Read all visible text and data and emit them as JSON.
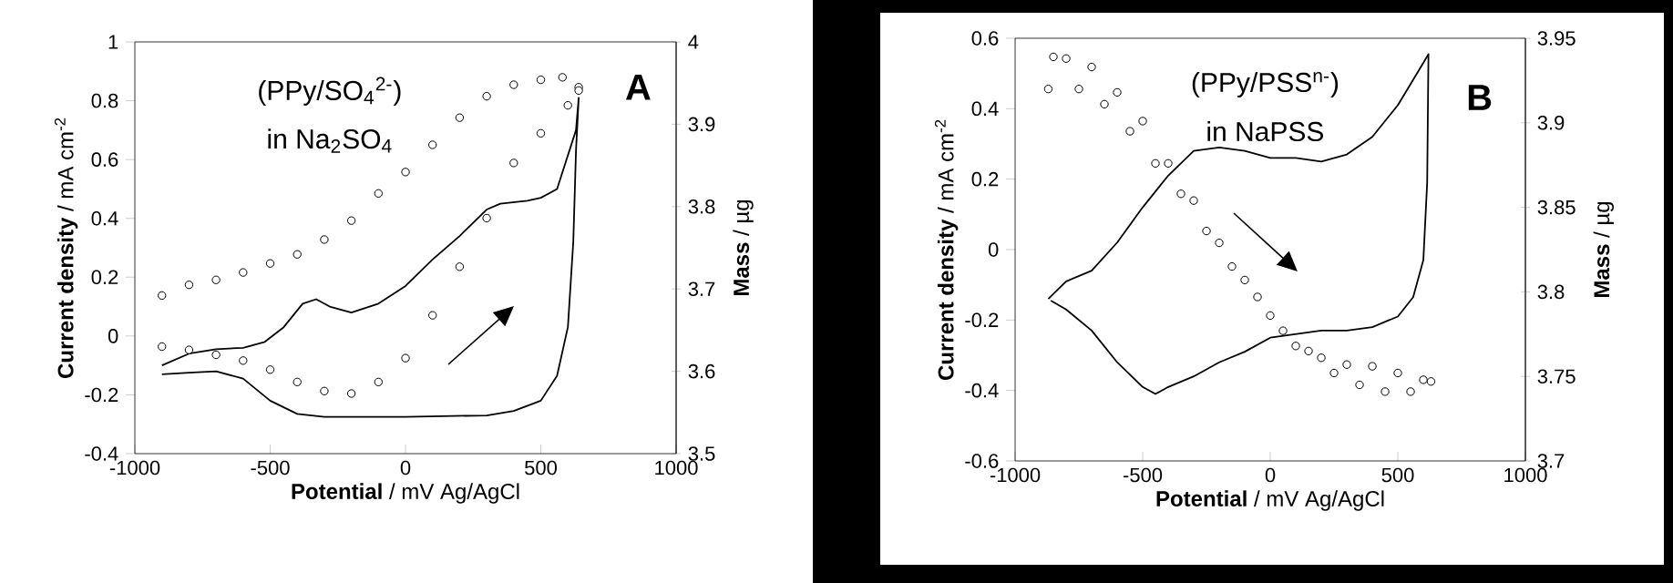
{
  "chart_data": [
    {
      "type": "line",
      "xlabel": "**Potential** / mV Ag/AgCl",
      "ylabel": "**Current density** / mA cm$^{-2}$",
      "y2label": "**Mass** / µg",
      "annotations": [
        "(PPy/SO$_{4}$$^{2-}$)",
        "in Na$_{2}$SO$_{4}$",
        "A"
      ],
      "xlim": [
        -1000,
        1000
      ],
      "xticks": [
        -1000,
        -500,
        0,
        500,
        1000
      ],
      "ylim": [
        -0.4,
        1
      ],
      "yticks": [
        -0.4,
        -0.2,
        0,
        0.2,
        0.4,
        0.6,
        0.8,
        1
      ],
      "y2lim": [
        3.5,
        4
      ],
      "y2ticks": [
        3.5,
        3.6,
        3.7,
        3.8,
        3.9,
        4
      ],
      "series": [
        {
          "color": "#000000",
          "x": [
            -900,
            -800,
            -700,
            -600,
            -500,
            -400,
            -300,
            0,
            300,
            400,
            500,
            560,
            600,
            620,
            630,
            640,
            630,
            560,
            500,
            450,
            350,
            300,
            200,
            100,
            0,
            -100,
            -200,
            -280,
            -330,
            -380,
            -450,
            -520,
            -600,
            -700,
            -800,
            -900
          ],
          "values": [
            -0.13,
            -0.125,
            -0.12,
            -0.145,
            -0.22,
            -0.265,
            -0.275,
            -0.275,
            -0.27,
            -0.255,
            -0.22,
            -0.135,
            0.03,
            0.32,
            0.63,
            0.81,
            0.7,
            0.5,
            0.47,
            0.46,
            0.45,
            0.43,
            0.34,
            0.26,
            0.17,
            0.11,
            0.08,
            0.1,
            0.125,
            0.11,
            0.03,
            -0.02,
            -0.04,
            -0.045,
            -0.06,
            -0.1
          ]
        },
        {
          "type": "scatter",
          "axis": "y2",
          "marker": "circle",
          "color": "#000000",
          "x": [
            -900,
            -800,
            -700,
            -600,
            -500,
            -400,
            -300,
            -200,
            -100,
            0,
            100,
            200,
            300,
            400,
            500,
            580,
            640
          ],
          "values": [
            3.692,
            3.705,
            3.711,
            3.72,
            3.731,
            3.742,
            3.76,
            3.783,
            3.816,
            3.842,
            3.875,
            3.908,
            3.934,
            3.948,
            3.954,
            3.957,
            3.945
          ]
        },
        {
          "type": "scatter",
          "axis": "y2",
          "marker": "circle",
          "color": "#000000",
          "x": [
            -900,
            -800,
            -700,
            -600,
            -500,
            -400,
            -300,
            -200,
            -100,
            0,
            100,
            200,
            300,
            400,
            500,
            600,
            640
          ],
          "values": [
            3.63,
            3.626,
            3.62,
            3.613,
            3.602,
            3.587,
            3.576,
            3.573,
            3.587,
            3.616,
            3.668,
            3.727,
            3.786,
            3.853,
            3.889,
            3.923,
            3.941
          ]
        }
      ]
    },
    {
      "type": "line",
      "xlabel": "**Potential** / mV Ag/AgCl",
      "ylabel": "**Current density** / mA cm$^{-2}$",
      "y2label": "**Mass** / µg",
      "annotations": [
        "(PPy/PSS$^{n-}$)",
        "in NaPSS",
        "B"
      ],
      "xlim": [
        -1000,
        1000
      ],
      "xticks": [
        -1000,
        -500,
        0,
        500,
        1000
      ],
      "ylim": [
        -0.6,
        0.6
      ],
      "yticks": [
        -0.6,
        -0.4,
        -0.2,
        0,
        0.2,
        0.4,
        0.6
      ],
      "y2lim": [
        3.7,
        3.95
      ],
      "y2ticks": [
        3.7,
        3.75,
        3.8,
        3.85,
        3.9,
        3.95
      ],
      "series": [
        {
          "color": "#000000",
          "x": [
            -870,
            -800,
            -700,
            -600,
            -500,
            -400,
            -300,
            -200,
            -100,
            0,
            100,
            200,
            300,
            400,
            500,
            600,
            620,
            615,
            600,
            560,
            500,
            400,
            300,
            200,
            0,
            -100,
            -200,
            -300,
            -400,
            -450,
            -500,
            -600,
            -700,
            -800,
            -860
          ],
          "values": [
            -0.14,
            -0.09,
            -0.06,
            0.02,
            0.12,
            0.21,
            0.28,
            0.29,
            0.28,
            0.26,
            0.26,
            0.25,
            0.27,
            0.32,
            0.41,
            0.53,
            0.555,
            0.19,
            -0.03,
            -0.135,
            -0.19,
            -0.22,
            -0.23,
            -0.23,
            -0.25,
            -0.29,
            -0.32,
            -0.36,
            -0.39,
            -0.41,
            -0.39,
            -0.32,
            -0.23,
            -0.17,
            -0.145
          ]
        },
        {
          "type": "scatter",
          "axis": "y2",
          "marker": "circle",
          "color": "#000000",
          "x": [
            -850,
            -800,
            -700,
            -600,
            -500,
            -400,
            -300,
            -200,
            -100,
            0,
            100,
            200,
            300,
            400,
            500,
            600
          ],
          "values": [
            3.939,
            3.938,
            3.933,
            3.918,
            3.901,
            3.876,
            3.854,
            3.829,
            3.807,
            3.786,
            3.768,
            3.761,
            3.757,
            3.756,
            3.752,
            3.748
          ]
        },
        {
          "type": "scatter",
          "axis": "y2",
          "marker": "circle",
          "color": "#000000",
          "x": [
            -870,
            -750,
            -650,
            -550,
            -450,
            -350,
            -250,
            -150,
            -50,
            50,
            150,
            250,
            350,
            450,
            550,
            630
          ],
          "values": [
            3.92,
            3.92,
            3.911,
            3.895,
            3.876,
            3.858,
            3.836,
            3.815,
            3.797,
            3.777,
            3.765,
            3.752,
            3.745,
            3.741,
            3.741,
            3.747
          ]
        }
      ]
    }
  ]
}
